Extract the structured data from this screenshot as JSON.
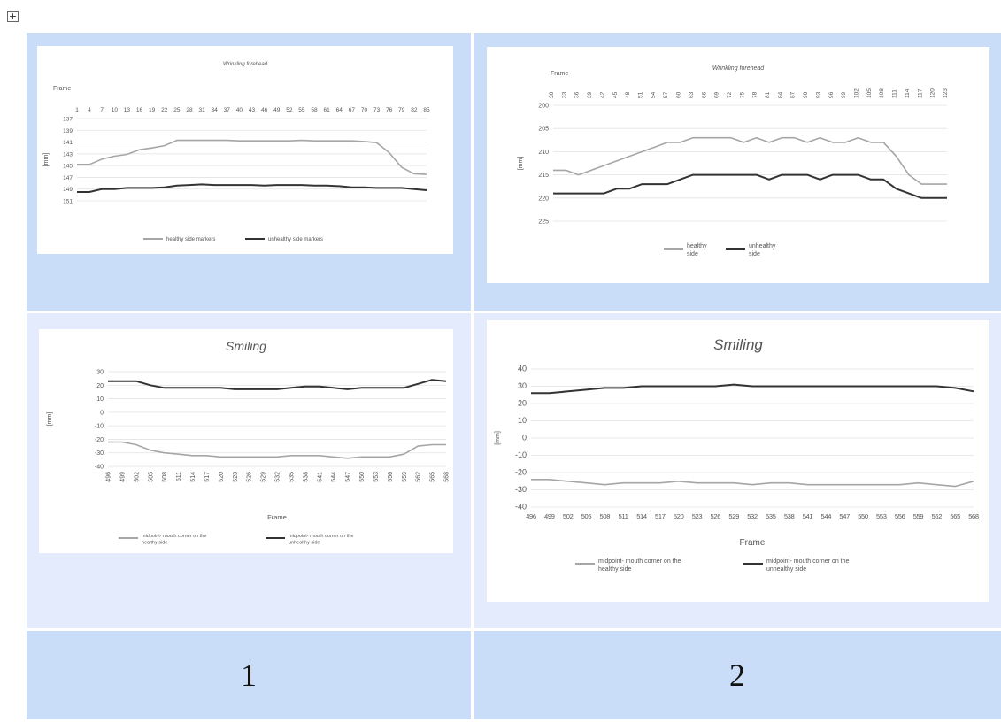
{
  "doc": {
    "table_handle_icon": "move-icon"
  },
  "table": {
    "colors": {
      "cell_blue": "#c9dcf8",
      "cell_light": "#e3ebfc"
    },
    "labels": [
      "1",
      "2"
    ]
  },
  "chart_data": [
    {
      "type": "line",
      "title": "Wrinkling forehead",
      "xlabel": "Frame",
      "ylabel": "[mm]",
      "y_reversed": true,
      "ylim": [
        137,
        151
      ],
      "y_ticks": [
        "137",
        "139",
        "141",
        "143",
        "145",
        "147",
        "149",
        "151"
      ],
      "x_tick_labels": [
        "1",
        "4",
        "7",
        "10",
        "13",
        "16",
        "19",
        "22",
        "25",
        "28",
        "31",
        "34",
        "37",
        "40",
        "43",
        "46",
        "49",
        "52",
        "55",
        "58",
        "61",
        "64",
        "67",
        "70",
        "73",
        "76",
        "79",
        "82",
        "85"
      ],
      "x_tick_position": "top",
      "legend_position": "bottom",
      "x": [
        1,
        4,
        7,
        10,
        13,
        16,
        19,
        22,
        25,
        28,
        31,
        34,
        37,
        40,
        43,
        46,
        49,
        52,
        55,
        58,
        61,
        64,
        67,
        70,
        73,
        76,
        79,
        82,
        85
      ],
      "series": [
        {
          "name": "healthy side markers",
          "color": "#a6a6a6",
          "values": [
            144.8,
            144.8,
            143.9,
            143.4,
            143.1,
            142.3,
            142.0,
            141.6,
            140.7,
            140.7,
            140.7,
            140.7,
            140.7,
            140.8,
            140.8,
            140.8,
            140.8,
            140.8,
            140.7,
            140.8,
            140.8,
            140.8,
            140.8,
            140.9,
            141.1,
            142.8,
            145.3,
            146.4,
            146.5
          ]
        },
        {
          "name": "unhealthy side markers",
          "color": "#333333",
          "values": [
            149.5,
            149.5,
            149.0,
            149.0,
            148.8,
            148.8,
            148.8,
            148.7,
            148.4,
            148.3,
            148.2,
            148.3,
            148.3,
            148.3,
            148.3,
            148.4,
            148.3,
            148.3,
            148.3,
            148.4,
            148.4,
            148.5,
            148.7,
            148.7,
            148.8,
            148.8,
            148.8,
            149.0,
            149.2
          ]
        }
      ]
    },
    {
      "type": "line",
      "title": "Wrinkling forehead",
      "xlabel": "Frame",
      "ylabel": "[mm]",
      "y_reversed": true,
      "ylim": [
        200,
        225
      ],
      "y_ticks": [
        "200",
        "205",
        "210",
        "215",
        "220",
        "225"
      ],
      "x_tick_labels": [
        "30",
        "33",
        "36",
        "39",
        "42",
        "45",
        "48",
        "51",
        "54",
        "57",
        "60",
        "63",
        "66",
        "69",
        "72",
        "75",
        "78",
        "81",
        "84",
        "87",
        "90",
        "93",
        "96",
        "99",
        "102",
        "105",
        "108",
        "111",
        "114",
        "117",
        "120",
        "123"
      ],
      "x_tick_position": "top",
      "legend_position": "bottom",
      "x": [
        30,
        33,
        36,
        39,
        42,
        45,
        48,
        51,
        54,
        57,
        60,
        63,
        66,
        69,
        72,
        75,
        78,
        81,
        84,
        87,
        90,
        93,
        96,
        99,
        102,
        105,
        108,
        111,
        114,
        117,
        120,
        123
      ],
      "series": [
        {
          "name": "healthy side",
          "color": "#a6a6a6",
          "values": [
            214,
            214,
            215,
            214,
            213,
            212,
            211,
            210,
            209,
            208,
            208,
            207,
            207,
            207,
            207,
            208,
            207,
            208,
            207,
            207,
            208,
            207,
            208,
            208,
            207,
            208,
            208,
            211,
            215,
            217,
            217,
            217
          ]
        },
        {
          "name": "unhealthy side",
          "color": "#333333",
          "values": [
            219,
            219,
            219,
            219,
            219,
            218,
            218,
            217,
            217,
            217,
            216,
            215,
            215,
            215,
            215,
            215,
            215,
            216,
            215,
            215,
            215,
            216,
            215,
            215,
            215,
            216,
            216,
            218,
            219,
            220,
            220,
            220
          ]
        }
      ]
    },
    {
      "type": "line",
      "title": "Smiling",
      "xlabel": "Frame",
      "ylabel": "[mm]",
      "ylim": [
        -40,
        30
      ],
      "y_ticks": [
        "30",
        "20",
        "10",
        "0",
        "-10",
        "-20",
        "-30",
        "-40"
      ],
      "x_tick_labels": [
        "496",
        "499",
        "502",
        "505",
        "508",
        "511",
        "514",
        "517",
        "520",
        "523",
        "526",
        "529",
        "532",
        "535",
        "538",
        "541",
        "544",
        "547",
        "550",
        "553",
        "556",
        "559",
        "562",
        "565",
        "568"
      ],
      "x_tick_rotated": true,
      "legend_position": "bottom",
      "x": [
        496,
        499,
        502,
        505,
        508,
        511,
        514,
        517,
        520,
        523,
        526,
        529,
        532,
        535,
        538,
        541,
        544,
        547,
        550,
        553,
        556,
        559,
        562,
        565,
        568
      ],
      "series": [
        {
          "name": "midpoint- mouth corner on the healthy side",
          "color": "#a6a6a6",
          "values": [
            -22,
            -22,
            -24,
            -28,
            -30,
            -31,
            -32,
            -32,
            -33,
            -33,
            -33,
            -33,
            -33,
            -32,
            -32,
            -32,
            -33,
            -34,
            -33,
            -33,
            -33,
            -31,
            -25,
            -24,
            -24
          ]
        },
        {
          "name": "midpoint- mouth corner on the unhealthy side",
          "color": "#333333",
          "values": [
            23,
            23,
            23,
            20,
            18,
            18,
            18,
            18,
            18,
            17,
            17,
            17,
            17,
            18,
            19,
            19,
            18,
            17,
            18,
            18,
            18,
            18,
            21,
            24,
            23
          ]
        }
      ]
    },
    {
      "type": "line",
      "title": "Smiling",
      "xlabel": "Frame",
      "ylabel": "[mm]",
      "ylim": [
        -40,
        40
      ],
      "y_ticks": [
        "40",
        "30",
        "20",
        "10",
        "0",
        "-10",
        "-20",
        "-30",
        "-40"
      ],
      "x_tick_labels": [
        "496",
        "499",
        "502",
        "505",
        "508",
        "511",
        "514",
        "517",
        "520",
        "523",
        "526",
        "529",
        "532",
        "535",
        "538",
        "541",
        "544",
        "547",
        "550",
        "553",
        "556",
        "559",
        "562",
        "565",
        "568"
      ],
      "legend_position": "bottom",
      "x": [
        496,
        499,
        502,
        505,
        508,
        511,
        514,
        517,
        520,
        523,
        526,
        529,
        532,
        535,
        538,
        541,
        544,
        547,
        550,
        553,
        556,
        559,
        562,
        565,
        568
      ],
      "series": [
        {
          "name": "midpoint- mouth corner on the healthy side",
          "color": "#a6a6a6",
          "values": [
            -24,
            -24,
            -25,
            -26,
            -27,
            -26,
            -26,
            -26,
            -25,
            -26,
            -26,
            -26,
            -27,
            -26,
            -26,
            -27,
            -27,
            -27,
            -27,
            -27,
            -27,
            -26,
            -27,
            -28,
            -25
          ]
        },
        {
          "name": "midpoint- mouth corner on the unhealthy side",
          "color": "#333333",
          "values": [
            26,
            26,
            27,
            28,
            29,
            29,
            30,
            30,
            30,
            30,
            30,
            31,
            30,
            30,
            30,
            30,
            30,
            30,
            30,
            30,
            30,
            30,
            30,
            29,
            27
          ]
        }
      ]
    }
  ]
}
